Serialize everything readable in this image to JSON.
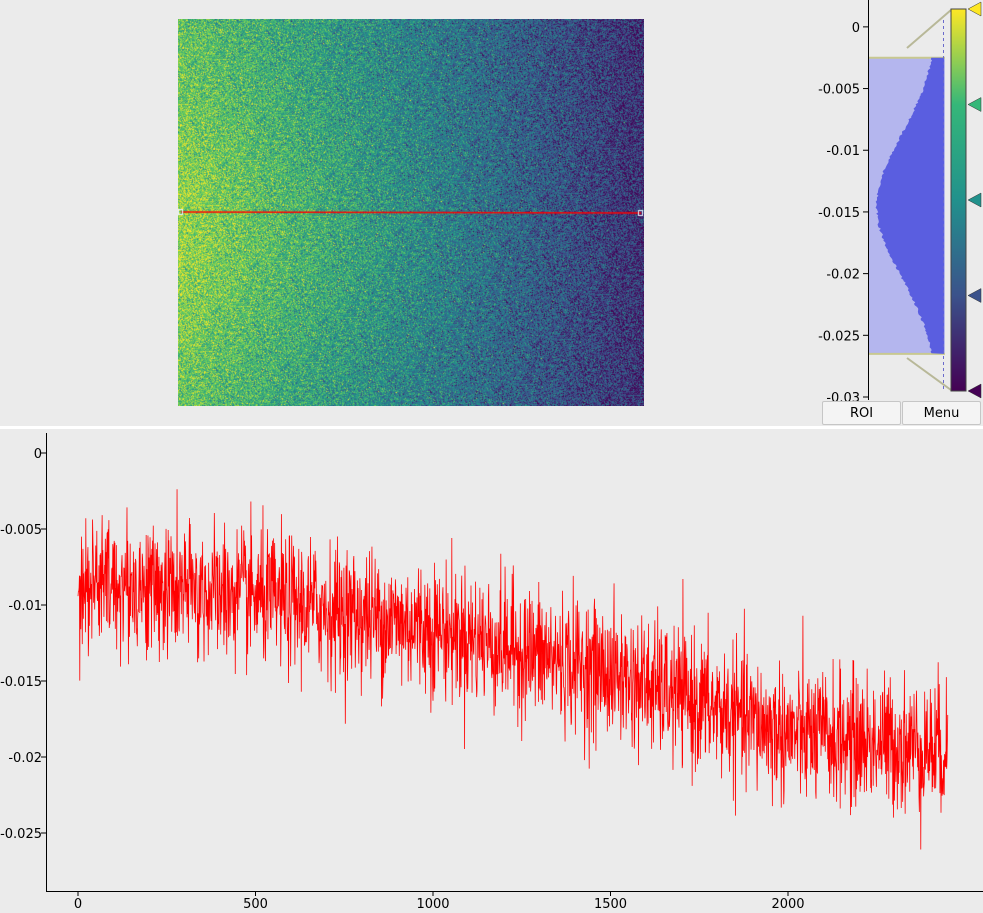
{
  "image_view": {
    "colormap": "viridis",
    "roi_line_color": "#ff0000",
    "levels": [
      -0.0265,
      -0.0025
    ]
  },
  "histogram": {
    "y_ticks": [
      "0",
      "-0.005",
      "-0.01",
      "-0.015",
      "-0.02",
      "-0.025",
      "-0.03"
    ],
    "y_tick_values": [
      0,
      -0.005,
      -0.01,
      -0.015,
      -0.02,
      -0.025,
      -0.03
    ],
    "ylim": [
      -0.03,
      0.0008
    ],
    "region": [
      -0.0265,
      -0.0025
    ],
    "fill_color": "#5a5ee0",
    "region_color": "#b4b6ee",
    "gradient_stops": [
      {
        "value": 1.0,
        "color": "#fde725"
      },
      {
        "value": 0.75,
        "color": "#35b779"
      },
      {
        "value": 0.5,
        "color": "#21918c"
      },
      {
        "value": 0.25,
        "color": "#3b528b"
      },
      {
        "value": 0.0,
        "color": "#440154"
      }
    ]
  },
  "buttons": {
    "roi_label": "ROI",
    "menu_label": "Menu"
  },
  "chart_data": {
    "type": "line",
    "title": "",
    "xlabel": "",
    "ylabel": "",
    "x_ticks": [
      "0",
      "500",
      "1000",
      "1500",
      "2000"
    ],
    "x_tick_values": [
      0,
      500,
      1000,
      1500,
      2000
    ],
    "y_ticks": [
      "0",
      "-0.005",
      "-0.01",
      "-0.015",
      "-0.02",
      "-0.025"
    ],
    "y_tick_values": [
      0,
      -0.005,
      -0.01,
      -0.015,
      -0.02,
      -0.025
    ],
    "xlim": [
      -60,
      2470
    ],
    "ylim": [
      -0.0285,
      0.0015
    ],
    "series": [
      {
        "color": "#ff0000",
        "x_range": [
          0,
          2450
        ],
        "trend_x": [
          0,
          500,
          1000,
          1500,
          2000,
          2450
        ],
        "trend_y": [
          -0.0085,
          -0.0095,
          -0.0115,
          -0.0145,
          -0.0185,
          -0.0195
        ],
        "noise_amplitude": 0.0022,
        "min": -0.0275,
        "max": 0.0
      }
    ]
  }
}
